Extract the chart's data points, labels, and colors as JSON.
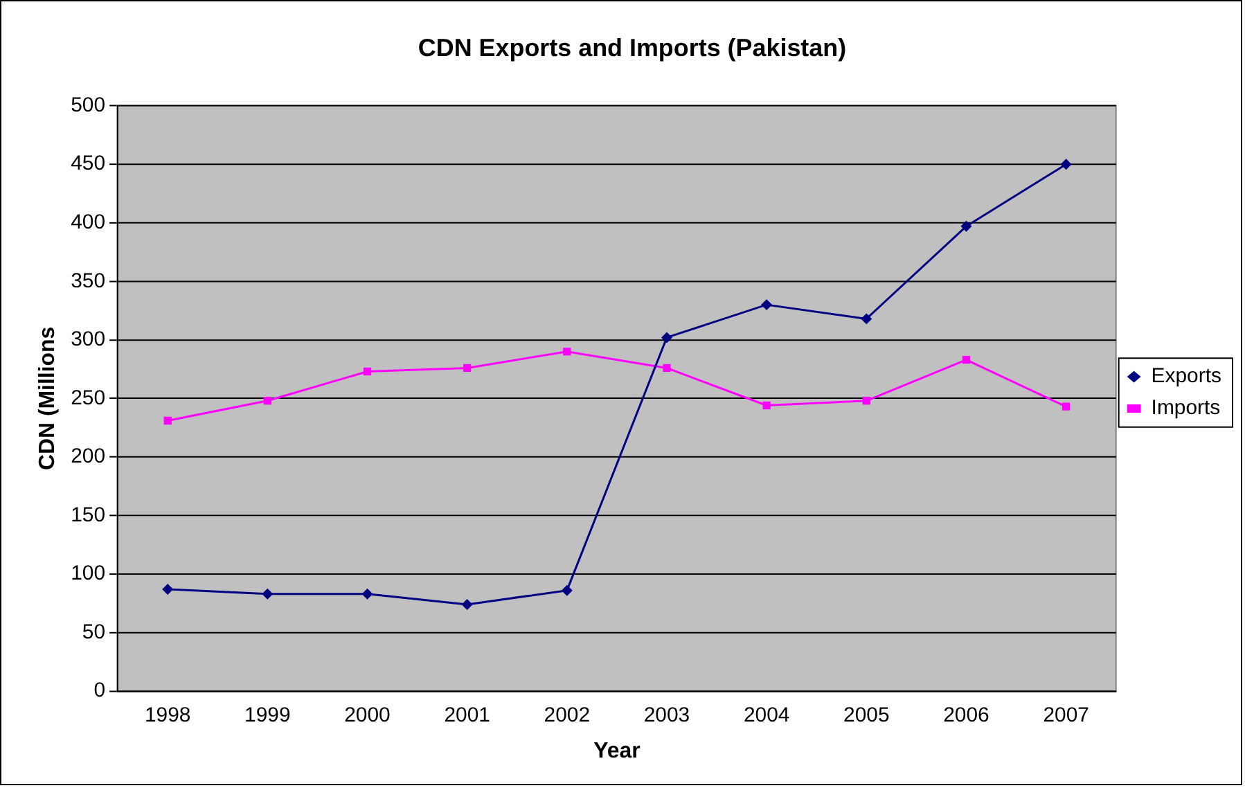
{
  "chart_data": {
    "type": "line",
    "title": "CDN Exports and Imports (Pakistan)",
    "xlabel": "Year",
    "ylabel": "CDN (Millions",
    "categories": [
      "1998",
      "1999",
      "2000",
      "2001",
      "2002",
      "2003",
      "2004",
      "2005",
      "2006",
      "2007"
    ],
    "series": [
      {
        "name": "Exports",
        "color": "#000080",
        "marker": "diamond",
        "values": [
          87,
          83,
          83,
          74,
          86,
          302,
          330,
          318,
          397,
          450
        ]
      },
      {
        "name": "Imports",
        "color": "#ff00ff",
        "marker": "square",
        "values": [
          231,
          248,
          273,
          276,
          290,
          276,
          244,
          248,
          283,
          243
        ]
      }
    ],
    "ylim": [
      0,
      500
    ],
    "yticks": [
      0,
      50,
      100,
      150,
      200,
      250,
      300,
      350,
      400,
      450,
      500
    ],
    "grid": "y",
    "legend": "right",
    "line_style": "solid"
  }
}
